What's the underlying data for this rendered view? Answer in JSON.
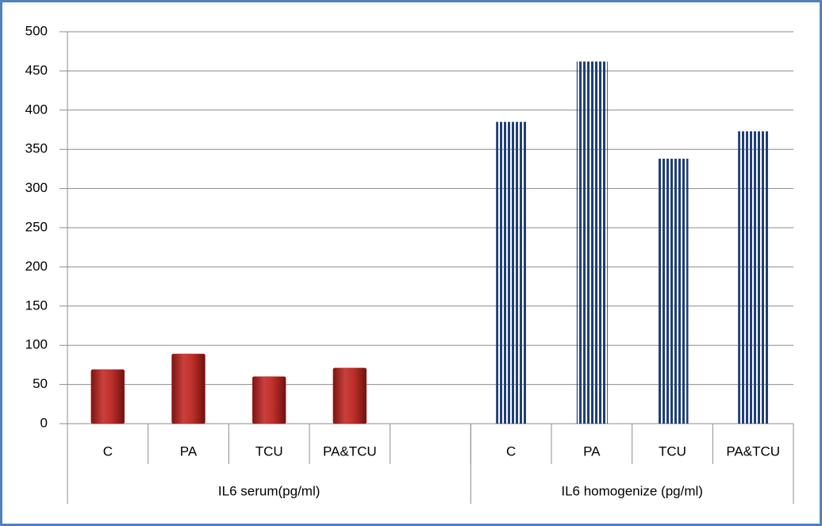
{
  "chart_data": {
    "type": "bar",
    "categories": [
      "C",
      "PA",
      "TCU",
      "PA&TCU",
      null,
      "C",
      "PA",
      "TCU",
      "PA&TCU"
    ],
    "groups": [
      "IL6 serum(pg/ml)",
      "IL6 homogenize (pg/ml)"
    ],
    "series": [
      {
        "color": "#b02a27",
        "values": [
          69,
          89,
          60,
          71,
          null,
          null,
          null,
          null,
          null
        ]
      },
      {
        "color": "#1f3f77",
        "values": [
          null,
          null,
          null,
          null,
          null,
          385,
          462,
          338,
          373
        ]
      }
    ],
    "ylim": [
      0,
      500
    ],
    "yticks": [
      0,
      50,
      100,
      150,
      200,
      250,
      300,
      350,
      400,
      450,
      500
    ],
    "grid": true
  }
}
